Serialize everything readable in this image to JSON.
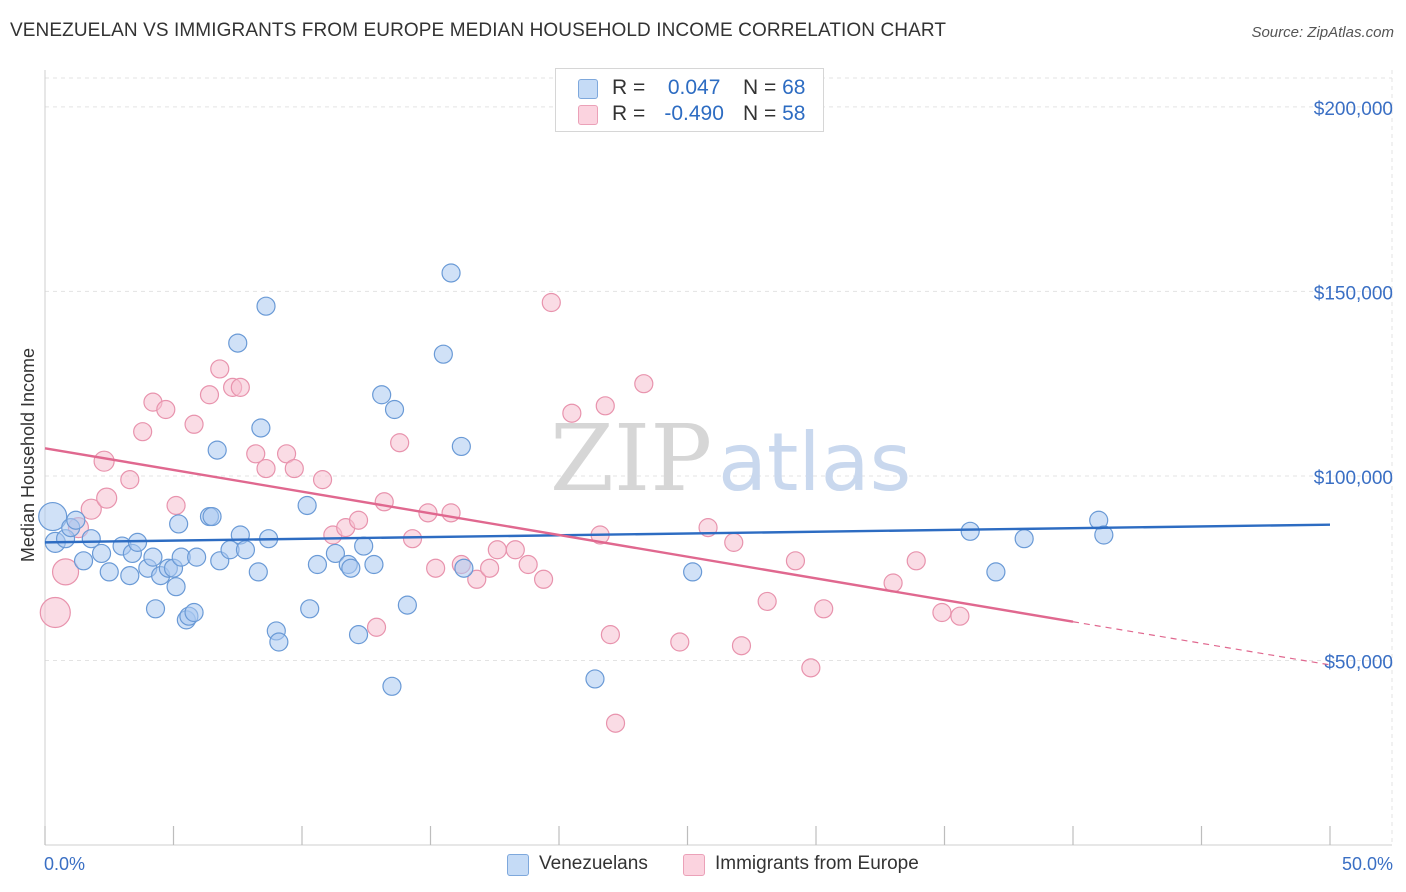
{
  "title": "VENEZUELAN VS IMMIGRANTS FROM EUROPE MEDIAN HOUSEHOLD INCOME CORRELATION CHART",
  "source": "Source: ZipAtlas.com",
  "watermark": {
    "zip": "ZIP",
    "atlas": "atlas"
  },
  "colors": {
    "blue_fill": "#a9c9f0",
    "blue_stroke": "#6a9ad6",
    "blue_line": "#2d6cc2",
    "pink_fill": "#f6bfd0",
    "pink_stroke": "#e893ad",
    "pink_line": "#e0688f",
    "axis_text": "#3a6fc4",
    "grid": "#e3e3e3"
  },
  "legend": {
    "rows": [
      {
        "r_label": "R =",
        "r_value": "0.047",
        "n_label": "N =",
        "n_value": "68",
        "color": "#a9c9f0"
      },
      {
        "r_label": "R =",
        "r_value": "-0.490",
        "n_label": "N =",
        "n_value": "58",
        "color": "#f6bfd0"
      }
    ]
  },
  "bottom_legend": [
    "Venezuelans",
    "Immigrants from Europe"
  ],
  "chart_data": {
    "type": "scatter",
    "title": "VENEZUELAN VS IMMIGRANTS FROM EUROPE MEDIAN HOUSEHOLD INCOME CORRELATION CHART",
    "xlabel": "",
    "ylabel": "Median Household Income",
    "xlim": [
      0,
      50
    ],
    "ylim": [
      0,
      210000
    ],
    "x_tick_labels": [
      "0.0%",
      "50.0%"
    ],
    "y_ticks": [
      50000,
      100000,
      150000,
      200000
    ],
    "y_tick_labels": [
      "$50,000",
      "$100,000",
      "$150,000",
      "$200,000"
    ],
    "grid": true,
    "legend_placement": "top-center",
    "series": [
      {
        "name": "Venezuelans",
        "R": 0.047,
        "N": 68,
        "trend": {
          "x": [
            0,
            50
          ],
          "y": [
            82000,
            86800
          ]
        },
        "points": [
          [
            0.3,
            89000,
            14
          ],
          [
            0.4,
            82000,
            10
          ],
          [
            0.8,
            83000,
            9
          ],
          [
            1.0,
            86000,
            9
          ],
          [
            1.2,
            88000,
            9
          ],
          [
            1.5,
            77000,
            9
          ],
          [
            1.8,
            83000,
            9
          ],
          [
            2.2,
            79000,
            9
          ],
          [
            2.5,
            74000,
            9
          ],
          [
            3.0,
            81000,
            9
          ],
          [
            3.3,
            73000,
            9
          ],
          [
            3.4,
            79000,
            9
          ],
          [
            3.6,
            82000,
            9
          ],
          [
            4.0,
            75000,
            9
          ],
          [
            4.2,
            78000,
            9
          ],
          [
            4.3,
            64000,
            9
          ],
          [
            4.5,
            73000,
            9
          ],
          [
            4.8,
            75000,
            9
          ],
          [
            5.0,
            75000,
            9
          ],
          [
            5.2,
            87000,
            9
          ],
          [
            5.1,
            70000,
            9
          ],
          [
            5.3,
            78000,
            9
          ],
          [
            5.5,
            61000,
            9
          ],
          [
            5.6,
            62000,
            9
          ],
          [
            5.8,
            63000,
            9
          ],
          [
            5.9,
            78000,
            9
          ],
          [
            6.4,
            89000,
            9
          ],
          [
            6.5,
            89000,
            9
          ],
          [
            6.7,
            107000,
            9
          ],
          [
            6.8,
            77000,
            9
          ],
          [
            7.2,
            80000,
            9
          ],
          [
            7.6,
            84000,
            9
          ],
          [
            7.5,
            136000,
            9
          ],
          [
            7.8,
            80000,
            9
          ],
          [
            8.3,
            74000,
            9
          ],
          [
            8.4,
            113000,
            9
          ],
          [
            8.6,
            146000,
            9
          ],
          [
            8.7,
            83000,
            9
          ],
          [
            9.0,
            58000,
            9
          ],
          [
            9.1,
            55000,
            9
          ],
          [
            10.2,
            92000,
            9
          ],
          [
            10.3,
            64000,
            9
          ],
          [
            10.6,
            76000,
            9
          ],
          [
            11.3,
            79000,
            9
          ],
          [
            11.8,
            76000,
            9
          ],
          [
            11.9,
            75000,
            9
          ],
          [
            12.2,
            57000,
            9
          ],
          [
            12.4,
            81000,
            9
          ],
          [
            12.8,
            76000,
            9
          ],
          [
            13.1,
            122000,
            9
          ],
          [
            13.6,
            118000,
            9
          ],
          [
            13.5,
            43000,
            9
          ],
          [
            14.1,
            65000,
            9
          ],
          [
            15.5,
            133000,
            9
          ],
          [
            15.8,
            155000,
            9
          ],
          [
            16.2,
            108000,
            9
          ],
          [
            16.3,
            75000,
            9
          ],
          [
            21.4,
            45000,
            9
          ],
          [
            25.2,
            74000,
            9
          ],
          [
            36.0,
            85000,
            9
          ],
          [
            37.0,
            74000,
            9
          ],
          [
            38.1,
            83000,
            9
          ],
          [
            41.0,
            88000,
            9
          ],
          [
            41.2,
            84000,
            9
          ]
        ]
      },
      {
        "name": "Immigrants from Europe",
        "R": -0.49,
        "N": 58,
        "trend": {
          "x": [
            0,
            40
          ],
          "y": [
            107500,
            60500
          ]
        },
        "trend_dashed": {
          "x": [
            40,
            50
          ],
          "y": [
            60500,
            48800
          ]
        },
        "points": [
          [
            0.4,
            63000,
            15
          ],
          [
            0.8,
            74000,
            13
          ],
          [
            1.3,
            86000,
            10
          ],
          [
            1.8,
            91000,
            10
          ],
          [
            2.3,
            104000,
            10
          ],
          [
            2.4,
            94000,
            10
          ],
          [
            3.3,
            99000,
            9
          ],
          [
            3.8,
            112000,
            9
          ],
          [
            4.2,
            120000,
            9
          ],
          [
            4.7,
            118000,
            9
          ],
          [
            5.1,
            92000,
            9
          ],
          [
            5.8,
            114000,
            9
          ],
          [
            6.4,
            122000,
            9
          ],
          [
            6.8,
            129000,
            9
          ],
          [
            7.3,
            124000,
            9
          ],
          [
            7.6,
            124000,
            9
          ],
          [
            8.2,
            106000,
            9
          ],
          [
            8.6,
            102000,
            9
          ],
          [
            9.4,
            106000,
            9
          ],
          [
            9.7,
            102000,
            9
          ],
          [
            10.8,
            99000,
            9
          ],
          [
            11.2,
            84000,
            9
          ],
          [
            11.7,
            86000,
            9
          ],
          [
            12.2,
            88000,
            9
          ],
          [
            12.9,
            59000,
            9
          ],
          [
            13.2,
            93000,
            9
          ],
          [
            13.8,
            109000,
            9
          ],
          [
            14.3,
            83000,
            9
          ],
          [
            14.9,
            90000,
            9
          ],
          [
            15.2,
            75000,
            9
          ],
          [
            15.8,
            90000,
            9
          ],
          [
            16.2,
            76000,
            9
          ],
          [
            16.8,
            72000,
            9
          ],
          [
            17.3,
            75000,
            9
          ],
          [
            17.6,
            80000,
            9
          ],
          [
            18.3,
            80000,
            9
          ],
          [
            18.8,
            76000,
            9
          ],
          [
            19.4,
            72000,
            9
          ],
          [
            19.7,
            147000,
            9
          ],
          [
            20.5,
            117000,
            9
          ],
          [
            21.6,
            84000,
            9
          ],
          [
            21.8,
            119000,
            9
          ],
          [
            22.0,
            57000,
            9
          ],
          [
            22.2,
            33000,
            9
          ],
          [
            23.3,
            125000,
            9
          ],
          [
            24.7,
            55000,
            9
          ],
          [
            25.8,
            86000,
            9
          ],
          [
            26.8,
            82000,
            9
          ],
          [
            27.1,
            54000,
            9
          ],
          [
            28.1,
            66000,
            9
          ],
          [
            29.2,
            77000,
            9
          ],
          [
            29.8,
            48000,
            9
          ],
          [
            30.3,
            64000,
            9
          ],
          [
            33.0,
            71000,
            9
          ],
          [
            33.9,
            77000,
            9
          ],
          [
            34.9,
            63000,
            9
          ],
          [
            35.6,
            62000,
            9
          ]
        ]
      }
    ]
  }
}
